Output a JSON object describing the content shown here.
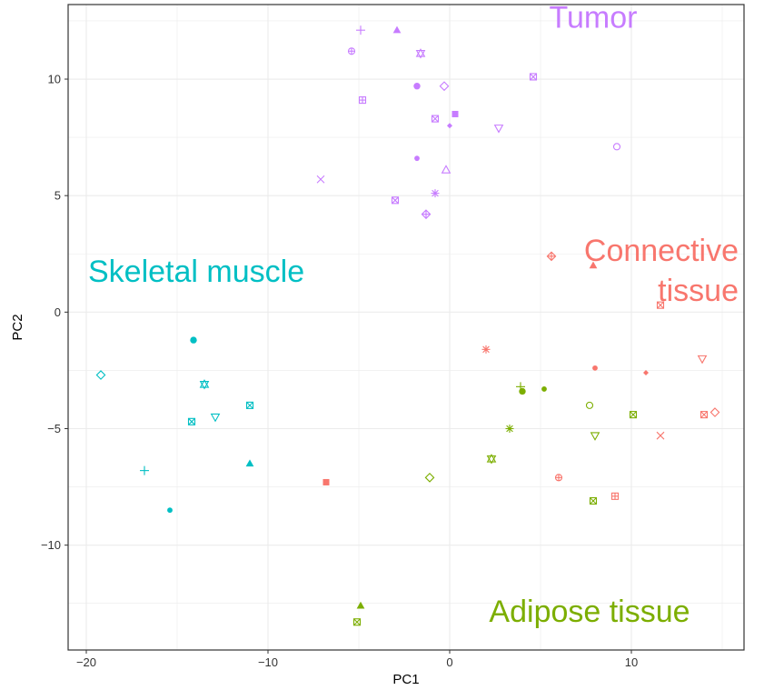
{
  "chart_data": {
    "type": "scatter",
    "title": "",
    "xlabel": "PC1",
    "ylabel": "PC2",
    "xlim": [
      -21,
      16.2
    ],
    "ylim": [
      -14.5,
      13.2
    ],
    "x_ticks": [
      {
        "value": -20,
        "label": "−20"
      },
      {
        "value": -10,
        "label": "−10"
      },
      {
        "value": 0,
        "label": "0"
      },
      {
        "value": 10,
        "label": "10"
      }
    ],
    "y_ticks": [
      {
        "value": -10,
        "label": "−10"
      },
      {
        "value": -5,
        "label": "−5"
      },
      {
        "value": 0,
        "label": "0"
      },
      {
        "value": 5,
        "label": "5"
      },
      {
        "value": 10,
        "label": "10"
      }
    ],
    "grid": true,
    "legend": "none",
    "series": [
      {
        "name": "Tumor",
        "color": "#c77cff",
        "label_anchor": [
          7.9,
          12.2
        ],
        "label_align": "middle",
        "label_lines": [
          "Tumor"
        ],
        "points": [
          {
            "x": -4.9,
            "y": 12.1,
            "shape": "plus"
          },
          {
            "x": -2.9,
            "y": 12.1,
            "shape": "triangle-filled"
          },
          {
            "x": -5.4,
            "y": 11.2,
            "shape": "circle-plus"
          },
          {
            "x": -1.6,
            "y": 11.1,
            "shape": "star-david"
          },
          {
            "x": 4.6,
            "y": 10.1,
            "shape": "square-cross"
          },
          {
            "x": -1.8,
            "y": 9.7,
            "shape": "circle-filled"
          },
          {
            "x": -0.3,
            "y": 9.7,
            "shape": "diamond-open"
          },
          {
            "x": -4.8,
            "y": 9.1,
            "shape": "square-plus"
          },
          {
            "x": 0.3,
            "y": 8.5,
            "shape": "square-filled"
          },
          {
            "x": -0.8,
            "y": 8.3,
            "shape": "square-cross"
          },
          {
            "x": 0.0,
            "y": 8.0,
            "shape": "diamond-filled"
          },
          {
            "x": 2.7,
            "y": 7.9,
            "shape": "triangle-down-open"
          },
          {
            "x": 9.2,
            "y": 7.1,
            "shape": "circle-open"
          },
          {
            "x": -1.8,
            "y": 6.6,
            "shape": "circle-filled-small"
          },
          {
            "x": -0.2,
            "y": 6.1,
            "shape": "triangle-open"
          },
          {
            "x": -7.1,
            "y": 5.7,
            "shape": "cross"
          },
          {
            "x": -0.8,
            "y": 5.1,
            "shape": "asterisk"
          },
          {
            "x": -3.0,
            "y": 4.8,
            "shape": "square-cross"
          },
          {
            "x": -1.3,
            "y": 4.2,
            "shape": "diamond-plus"
          }
        ]
      },
      {
        "name": "Connective tissue",
        "color": "#f8766d",
        "label_anchor": [
          15.9,
          2.2
        ],
        "label_align": "end",
        "label_lines": [
          "Connective",
          "tissue"
        ],
        "points": [
          {
            "x": 5.6,
            "y": 2.4,
            "shape": "diamond-plus"
          },
          {
            "x": 7.9,
            "y": 2.0,
            "shape": "triangle-filled"
          },
          {
            "x": 11.6,
            "y": 0.3,
            "shape": "square-cross"
          },
          {
            "x": 2.0,
            "y": -1.6,
            "shape": "asterisk"
          },
          {
            "x": 13.9,
            "y": -2.0,
            "shape": "triangle-down-open"
          },
          {
            "x": 8.0,
            "y": -2.4,
            "shape": "circle-filled-small"
          },
          {
            "x": 10.8,
            "y": -2.6,
            "shape": "diamond-filled"
          },
          {
            "x": 14.6,
            "y": -4.3,
            "shape": "diamond-open"
          },
          {
            "x": 14.0,
            "y": -4.4,
            "shape": "square-cross"
          },
          {
            "x": 11.6,
            "y": -5.3,
            "shape": "cross"
          },
          {
            "x": 6.0,
            "y": -7.1,
            "shape": "circle-plus"
          },
          {
            "x": -6.8,
            "y": -7.3,
            "shape": "square-filled"
          },
          {
            "x": 9.1,
            "y": -7.9,
            "shape": "square-plus"
          }
        ]
      },
      {
        "name": "Skeletal muscle",
        "color": "#00bfc4",
        "label_anchor": [
          -19.9,
          1.3
        ],
        "label_align": "start",
        "label_lines": [
          "Skeletal muscle"
        ],
        "points": [
          {
            "x": -14.1,
            "y": -1.2,
            "shape": "circle-filled"
          },
          {
            "x": -19.2,
            "y": -2.7,
            "shape": "diamond-open"
          },
          {
            "x": -13.5,
            "y": -3.1,
            "shape": "star-david"
          },
          {
            "x": -11.0,
            "y": -4.0,
            "shape": "square-cross"
          },
          {
            "x": -12.9,
            "y": -4.5,
            "shape": "triangle-down-open"
          },
          {
            "x": -14.2,
            "y": -4.7,
            "shape": "square-cross"
          },
          {
            "x": -11.0,
            "y": -6.5,
            "shape": "triangle-filled"
          },
          {
            "x": -16.8,
            "y": -6.8,
            "shape": "plus"
          },
          {
            "x": -15.4,
            "y": -8.5,
            "shape": "circle-filled-small"
          }
        ]
      },
      {
        "name": "Adipose tissue",
        "color": "#7cae00",
        "label_anchor": [
          7.7,
          -13.3
        ],
        "label_align": "middle",
        "label_lines": [
          "Adipose tissue"
        ],
        "points": [
          {
            "x": 3.9,
            "y": -3.2,
            "shape": "plus"
          },
          {
            "x": 5.2,
            "y": -3.3,
            "shape": "circle-filled-small"
          },
          {
            "x": 4.0,
            "y": -3.4,
            "shape": "circle-filled"
          },
          {
            "x": 7.7,
            "y": -4.0,
            "shape": "circle-open"
          },
          {
            "x": 10.1,
            "y": -4.4,
            "shape": "square-cross"
          },
          {
            "x": 3.3,
            "y": -5.0,
            "shape": "asterisk"
          },
          {
            "x": 8.0,
            "y": -5.3,
            "shape": "triangle-down-open"
          },
          {
            "x": 2.3,
            "y": -6.3,
            "shape": "star-david"
          },
          {
            "x": -1.1,
            "y": -7.1,
            "shape": "diamond-open"
          },
          {
            "x": 7.9,
            "y": -8.1,
            "shape": "square-cross"
          },
          {
            "x": -4.9,
            "y": -12.6,
            "shape": "triangle-filled"
          },
          {
            "x": -5.1,
            "y": -13.3,
            "shape": "square-cross"
          }
        ]
      }
    ]
  }
}
